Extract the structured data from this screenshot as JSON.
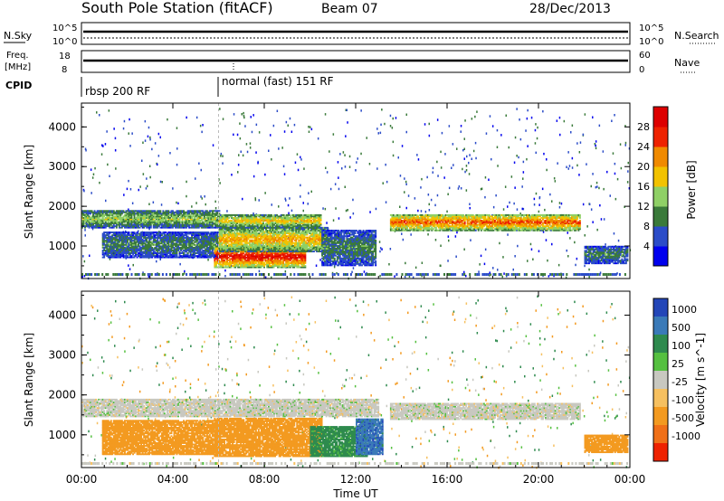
{
  "header": {
    "title": "South Pole Station (fitACF)",
    "beam": "Beam 07",
    "date": "28/Dec/2013"
  },
  "noise_panel": {
    "left_label": "N.Sky",
    "right_label": "N.Search",
    "tick_top": "10^5",
    "tick_bottom": "10^0"
  },
  "freq_panel": {
    "label_line1": "Freq.",
    "label_line2": "[MHz]",
    "ticks": [
      "18",
      "8"
    ],
    "right_label": "Nave",
    "right_ticks": [
      "60",
      "0"
    ]
  },
  "cpid": {
    "label": "CPID",
    "segments": [
      {
        "label": "rbsp 200 RF",
        "start_hour": 0,
        "end_hour": 6
      },
      {
        "label": "normal (fast) 151 RF",
        "start_hour": 6,
        "end_hour": 24
      }
    ]
  },
  "power_colorbar": {
    "label": "Power [dB]",
    "ticks": [
      "28",
      "24",
      "20",
      "16",
      "12",
      "8",
      "4"
    ],
    "colors": [
      "#0000ee",
      "#2b4cc8",
      "#3a7a3a",
      "#8fd066",
      "#f2c200",
      "#f08a00",
      "#ee2200",
      "#dd0000"
    ]
  },
  "velocity_colorbar": {
    "label": "Velocity [m s^-1]",
    "ticks": [
      "1000",
      "500",
      "100",
      "25",
      "-25",
      "-100",
      "-500",
      "-1000"
    ],
    "colors": [
      "#2346b8",
      "#3a7ab8",
      "#2e8a4e",
      "#55c040",
      "#c8c8c0",
      "#f6c060",
      "#f39a20",
      "#f07018",
      "#ee2200"
    ]
  },
  "chart_data": [
    {
      "type": "heatmap",
      "name": "Power",
      "xlabel": "",
      "ylabel": "Slant Range [km]",
      "y_ticks": [
        1000,
        2000,
        3000,
        4000
      ],
      "ylim": [
        180,
        4600
      ],
      "xlim": [
        0,
        24
      ],
      "x_ticks": [
        0,
        4,
        8,
        12,
        16,
        20,
        24
      ],
      "regions": [
        {
          "t0": 0.0,
          "t1": 6.0,
          "r0": 1450,
          "r1": 1900,
          "db": 14
        },
        {
          "t0": 0.9,
          "t1": 6.0,
          "r0": 700,
          "r1": 1350,
          "db": 10
        },
        {
          "t0": 6.0,
          "t1": 10.5,
          "r0": 1450,
          "r1": 1800,
          "db": 18
        },
        {
          "t0": 5.8,
          "t1": 9.8,
          "r0": 450,
          "r1": 1000,
          "db": 28
        },
        {
          "t0": 6.0,
          "t1": 10.8,
          "r0": 850,
          "r1": 1450,
          "db": 20
        },
        {
          "t0": 10.5,
          "t1": 12.9,
          "r0": 500,
          "r1": 1400,
          "db": 10
        },
        {
          "t0": 13.5,
          "t1": 21.8,
          "r0": 1380,
          "r1": 1800,
          "db": 24
        },
        {
          "t0": 22.0,
          "t1": 23.9,
          "r0": 550,
          "r1": 1000,
          "db": 10
        }
      ]
    },
    {
      "type": "heatmap",
      "name": "Velocity",
      "xlabel": "Time UT",
      "ylabel": "Slant Range [km]",
      "y_ticks": [
        1000,
        2000,
        3000,
        4000
      ],
      "ylim": [
        180,
        4600
      ],
      "xlim": [
        0,
        24
      ],
      "x_ticks": [
        0,
        4,
        8,
        12,
        16,
        20,
        24
      ],
      "x_tick_labels": [
        "00:00",
        "04:00",
        "08:00",
        "12:00",
        "16:00",
        "20:00",
        "00:00"
      ],
      "regions": [
        {
          "t0": 0.0,
          "t1": 13.0,
          "r0": 1450,
          "r1": 1900,
          "v": 0
        },
        {
          "t0": 13.5,
          "t1": 21.8,
          "r0": 1380,
          "r1": 1800,
          "v": 0
        },
        {
          "t0": 0.9,
          "t1": 6.0,
          "r0": 500,
          "r1": 1350,
          "v": -200
        },
        {
          "t0": 5.8,
          "t1": 10.5,
          "r0": 450,
          "r1": 1400,
          "v": -300
        },
        {
          "t0": 10.0,
          "t1": 12.5,
          "r0": 450,
          "r1": 1200,
          "v": 150
        },
        {
          "t0": 12.0,
          "t1": 13.2,
          "r0": 500,
          "r1": 1400,
          "v": 800
        },
        {
          "t0": 22.0,
          "t1": 23.9,
          "r0": 550,
          "r1": 1000,
          "v": -200
        }
      ]
    }
  ]
}
